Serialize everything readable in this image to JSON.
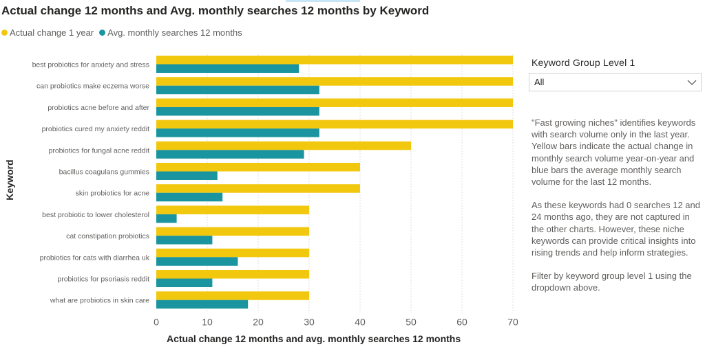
{
  "title": "Actual change 12 months and Avg. monthly searches 12 months by Keyword",
  "legend": {
    "items": [
      {
        "label": "Actual change 1 year",
        "color": "#F2C80F"
      },
      {
        "label": "Avg. monthly searches 12 months",
        "color": "#1A95A0"
      }
    ]
  },
  "slicer": {
    "title": "Keyword Group Level 1",
    "selected": "All",
    "icon": "chevron-down-icon"
  },
  "description": {
    "p1": "\"Fast growing niches\" identifies keywords with search volume only in the last year. Yellow bars indicate the actual change in monthly search volume year-on-year and blue bars the average monthly search volume for the last 12 months.",
    "p2": "As these keywords had 0 searches 12 and 24 months ago, they are not captured in the other charts. However, these niche keywords can provide critical insights into rising trends and help inform strategies.",
    "p3": "Filter by keyword group level 1 using the dropdown above."
  },
  "chart_data": {
    "type": "bar",
    "orientation": "horizontal",
    "title": "Actual change 12 months and Avg. monthly searches 12 months by Keyword",
    "xlabel": "Actual change 12 months and avg. monthly searches 12 months",
    "ylabel": "Keyword",
    "xlim": [
      0,
      70
    ],
    "xticks": [
      0,
      10,
      20,
      30,
      40,
      50,
      60,
      70
    ],
    "grid": "vertical dashed",
    "legend_position": "top-left",
    "categories": [
      "best probiotics for anxiety and stress",
      "can probiotics make eczema worse",
      "probiotics acne before and after",
      "probiotics cured my anxiety reddit",
      "probiotics for fungal acne reddit",
      "bacillus coagulans gummies",
      "skin probiotics for acne",
      "best probiotic to lower cholesterol",
      "cat constipation probiotics",
      "probiotics for cats with diarrhea uk",
      "probiotics for psoriasis reddit",
      "what are probiotics in skin care"
    ],
    "series": [
      {
        "name": "Actual change 1 year",
        "color": "#F2C80F",
        "values": [
          70,
          70,
          70,
          70,
          50,
          40,
          40,
          30,
          30,
          30,
          30,
          30
        ]
      },
      {
        "name": "Avg. monthly searches 12 months",
        "color": "#1A95A0",
        "values": [
          28,
          32,
          32,
          32,
          29,
          12,
          13,
          4,
          11,
          16,
          11,
          18
        ]
      }
    ]
  }
}
